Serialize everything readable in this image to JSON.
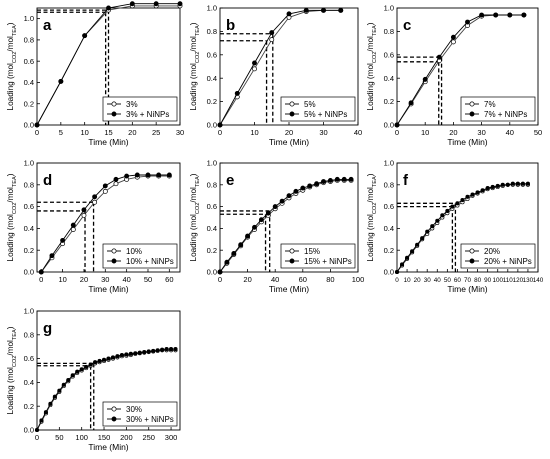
{
  "chart_data": [
    {
      "id": "a",
      "type": "line",
      "panel_label": "a",
      "xlabel": "Time (Min)",
      "ylabel_parts": [
        "Loading (mol",
        "CO2",
        "/mol",
        "TEA",
        ")"
      ],
      "xlim": [
        0,
        30
      ],
      "ylim": [
        0,
        1.1
      ],
      "xticks": [
        0,
        5,
        10,
        15,
        20,
        25,
        30
      ],
      "yticks": [
        0.0,
        0.2,
        0.4,
        0.6,
        0.8,
        1.0
      ],
      "ytick_labels": [
        "0.0",
        "0.2",
        "0.4",
        "0.6",
        "0.8",
        "1.0"
      ],
      "legend_position": "bottom-right",
      "series": [
        {
          "name": "3%",
          "marker": "open-circle",
          "x": [
            0,
            5,
            10,
            15,
            20,
            25,
            30
          ],
          "y": [
            0,
            0.41,
            0.84,
            1.08,
            1.12,
            1.12,
            1.12
          ]
        },
        {
          "name": "3% + NiNPs",
          "marker": "filled-circle",
          "x": [
            0,
            5,
            10,
            15,
            20,
            25,
            30
          ],
          "y": [
            0,
            0.41,
            0.84,
            1.1,
            1.14,
            1.14,
            1.14
          ]
        }
      ],
      "guides": [
        {
          "x": 14.4,
          "y": 1.06
        },
        {
          "x": 15.0,
          "y": 1.08
        }
      ]
    },
    {
      "id": "b",
      "type": "line",
      "panel_label": "b",
      "xlabel": "Time (Min)",
      "ylabel_parts": [
        "Loading (mol",
        "CO2",
        "/mol",
        "TEA",
        ")"
      ],
      "xlim": [
        0,
        40
      ],
      "ylim": [
        0,
        1.0
      ],
      "xticks": [
        0,
        10,
        20,
        30,
        40
      ],
      "yticks": [
        0.0,
        0.2,
        0.4,
        0.6,
        0.8,
        1.0
      ],
      "ytick_labels": [
        "0.0",
        "0.2",
        "0.4",
        "0.6",
        "0.8",
        "1.0"
      ],
      "legend_position": "bottom-right",
      "series": [
        {
          "name": "5%",
          "marker": "open-circle",
          "x": [
            0,
            5,
            10,
            15,
            20,
            25,
            30,
            35
          ],
          "y": [
            0,
            0.24,
            0.48,
            0.73,
            0.92,
            0.97,
            0.98,
            0.98
          ]
        },
        {
          "name": "5% + NiNPs",
          "marker": "filled-circle",
          "x": [
            0,
            5,
            10,
            15,
            20,
            25,
            30,
            35
          ],
          "y": [
            0,
            0.27,
            0.53,
            0.79,
            0.95,
            0.98,
            0.98,
            0.98
          ]
        }
      ],
      "guides": [
        {
          "x": 13.5,
          "y": 0.72
        },
        {
          "x": 15.3,
          "y": 0.78
        }
      ]
    },
    {
      "id": "c",
      "type": "line",
      "panel_label": "c",
      "xlabel": "Time (Min)",
      "ylabel_parts": [
        "Loading (mol",
        "CO2",
        "/mol",
        "TEA",
        ")"
      ],
      "xlim": [
        0,
        50
      ],
      "ylim": [
        0,
        1.0
      ],
      "xticks": [
        0,
        10,
        20,
        30,
        40,
        50
      ],
      "yticks": [
        0.0,
        0.2,
        0.4,
        0.6,
        0.8,
        1.0
      ],
      "ytick_labels": [
        "0.0",
        "0.2",
        "0.4",
        "0.6",
        "0.8",
        "1.0"
      ],
      "legend_position": "bottom-right",
      "series": [
        {
          "name": "7%",
          "marker": "open-circle",
          "x": [
            0,
            5,
            10,
            15,
            20,
            25,
            30,
            35,
            40,
            45
          ],
          "y": [
            0,
            0.18,
            0.37,
            0.55,
            0.71,
            0.85,
            0.93,
            0.94,
            0.94,
            0.94
          ]
        },
        {
          "name": "7% + NiNPs",
          "marker": "filled-circle",
          "x": [
            0,
            5,
            10,
            15,
            20,
            25,
            30,
            35,
            40,
            45
          ],
          "y": [
            0,
            0.19,
            0.39,
            0.58,
            0.75,
            0.88,
            0.94,
            0.94,
            0.94,
            0.94
          ]
        }
      ],
      "guides": [
        {
          "x": 14.8,
          "y": 0.54
        },
        {
          "x": 15.8,
          "y": 0.58
        }
      ]
    },
    {
      "id": "d",
      "type": "line",
      "panel_label": "d",
      "xlabel": "Time (Min)",
      "ylabel_parts": [
        "Loading (mol",
        "CO2",
        "/mol",
        "TEA",
        ")"
      ],
      "xlim": [
        -2,
        65
      ],
      "ylim": [
        0,
        1.0
      ],
      "xticks": [
        0,
        10,
        20,
        30,
        40,
        50,
        60
      ],
      "yticks": [
        0.0,
        0.2,
        0.4,
        0.6,
        0.8,
        1.0
      ],
      "ytick_labels": [
        "0.0",
        "0.2",
        "0.4",
        "0.6",
        "0.8",
        "1.0"
      ],
      "legend_position": "bottom-right",
      "series": [
        {
          "name": "10%",
          "marker": "open-circle",
          "x": [
            0,
            5,
            10,
            15,
            20,
            25,
            30,
            35,
            40,
            45,
            50,
            55,
            60
          ],
          "y": [
            0,
            0.13,
            0.26,
            0.39,
            0.52,
            0.64,
            0.74,
            0.81,
            0.85,
            0.87,
            0.88,
            0.88,
            0.88
          ]
        },
        {
          "name": "10% + NiNPs",
          "marker": "filled-circle",
          "x": [
            0,
            5,
            10,
            15,
            20,
            25,
            30,
            35,
            40,
            45,
            50,
            55,
            60
          ],
          "y": [
            0,
            0.15,
            0.29,
            0.43,
            0.57,
            0.69,
            0.79,
            0.85,
            0.88,
            0.89,
            0.89,
            0.89,
            0.89
          ]
        }
      ],
      "guides": [
        {
          "x": 20.5,
          "y": 0.56
        },
        {
          "x": 24.5,
          "y": 0.64
        }
      ]
    },
    {
      "id": "e",
      "type": "line",
      "panel_label": "e",
      "xlabel": "Time (Min)",
      "ylabel_parts": [
        "Loading (mol",
        "CO2",
        "/mol",
        "TEA",
        ")"
      ],
      "xlim": [
        0,
        100
      ],
      "ylim": [
        0,
        1.0
      ],
      "xticks": [
        0,
        20,
        40,
        60,
        80,
        100
      ],
      "yticks": [
        0.0,
        0.2,
        0.4,
        0.6,
        0.8,
        1.0
      ],
      "ytick_labels": [
        "0.0",
        "0.2",
        "0.4",
        "0.6",
        "0.8",
        "1.0"
      ],
      "legend_position": "bottom-right",
      "series": [
        {
          "name": "15%",
          "marker": "open-circle",
          "x": [
            0,
            5,
            10,
            15,
            20,
            25,
            30,
            35,
            40,
            45,
            50,
            55,
            60,
            65,
            70,
            75,
            80,
            85,
            90,
            95
          ],
          "y": [
            0,
            0.08,
            0.16,
            0.24,
            0.32,
            0.39,
            0.46,
            0.52,
            0.58,
            0.63,
            0.68,
            0.72,
            0.75,
            0.78,
            0.8,
            0.82,
            0.83,
            0.84,
            0.84,
            0.84
          ]
        },
        {
          "name": "15% + NiNPs",
          "marker": "filled-circle",
          "x": [
            0,
            5,
            10,
            15,
            20,
            25,
            30,
            35,
            40,
            45,
            50,
            55,
            60,
            65,
            70,
            75,
            80,
            85,
            90,
            95
          ],
          "y": [
            0,
            0.09,
            0.17,
            0.25,
            0.33,
            0.41,
            0.48,
            0.54,
            0.6,
            0.65,
            0.7,
            0.74,
            0.77,
            0.79,
            0.81,
            0.83,
            0.84,
            0.85,
            0.85,
            0.85
          ]
        }
      ],
      "guides": [
        {
          "x": 33,
          "y": 0.53
        },
        {
          "x": 36,
          "y": 0.56
        }
      ]
    },
    {
      "id": "f",
      "type": "line",
      "panel_label": "f",
      "xlabel": "Time (Min)",
      "ylabel_parts": [
        "Loading (mol",
        "CO2",
        "/mol",
        "TEA",
        ")"
      ],
      "xlim": [
        0,
        140
      ],
      "ylim": [
        0,
        1.0
      ],
      "xticks": [
        0,
        10,
        20,
        30,
        40,
        50,
        60,
        70,
        80,
        90,
        100,
        110,
        120,
        130,
        140
      ],
      "yticks": [
        0.0,
        0.2,
        0.4,
        0.6,
        0.8,
        1.0
      ],
      "ytick_labels": [
        "0.0",
        "0.2",
        "0.4",
        "0.6",
        "0.8",
        "1.0"
      ],
      "legend_position": "bottom-right",
      "series": [
        {
          "name": "20%",
          "marker": "open-circle",
          "x": [
            0,
            5,
            10,
            15,
            20,
            25,
            30,
            35,
            40,
            45,
            50,
            55,
            60,
            65,
            70,
            75,
            80,
            85,
            90,
            95,
            100,
            105,
            110,
            115,
            120,
            125,
            130
          ],
          "y": [
            0,
            0.06,
            0.12,
            0.18,
            0.24,
            0.3,
            0.35,
            0.4,
            0.45,
            0.5,
            0.54,
            0.58,
            0.61,
            0.64,
            0.67,
            0.7,
            0.72,
            0.74,
            0.76,
            0.77,
            0.78,
            0.79,
            0.8,
            0.8,
            0.8,
            0.8,
            0.8
          ]
        },
        {
          "name": "20% + NiNPs",
          "marker": "filled-circle",
          "x": [
            0,
            5,
            10,
            15,
            20,
            25,
            30,
            35,
            40,
            45,
            50,
            55,
            60,
            65,
            70,
            75,
            80,
            85,
            90,
            95,
            100,
            105,
            110,
            115,
            120,
            125,
            130
          ],
          "y": [
            0,
            0.07,
            0.13,
            0.19,
            0.25,
            0.31,
            0.37,
            0.42,
            0.47,
            0.52,
            0.56,
            0.6,
            0.63,
            0.66,
            0.69,
            0.71,
            0.73,
            0.75,
            0.77,
            0.78,
            0.79,
            0.8,
            0.8,
            0.81,
            0.81,
            0.81,
            0.81
          ]
        }
      ],
      "guides": [
        {
          "x": 55,
          "y": 0.6
        },
        {
          "x": 58,
          "y": 0.63
        }
      ]
    },
    {
      "id": "g",
      "type": "line",
      "panel_label": "g",
      "xlabel": "Time (Min)",
      "ylabel_parts": [
        "Loading (mol",
        "CO2",
        "/mol",
        "TEA",
        ")"
      ],
      "xlim": [
        0,
        320
      ],
      "ylim": [
        0,
        1.0
      ],
      "xticks": [
        0,
        50,
        100,
        150,
        200,
        250,
        300
      ],
      "yticks": [
        0.0,
        0.2,
        0.4,
        0.6,
        0.8,
        1.0
      ],
      "ytick_labels": [
        "0.0",
        "0.2",
        "0.4",
        "0.6",
        "0.8",
        "1.0"
      ],
      "legend_position": "bottom-right",
      "series": [
        {
          "name": "30%",
          "marker": "open-circle",
          "x": [
            0,
            10,
            20,
            30,
            40,
            50,
            60,
            70,
            80,
            90,
            100,
            110,
            120,
            130,
            140,
            150,
            160,
            170,
            180,
            190,
            200,
            210,
            220,
            230,
            240,
            250,
            260,
            270,
            280,
            290,
            300,
            310
          ],
          "y": [
            0,
            0.07,
            0.14,
            0.21,
            0.27,
            0.32,
            0.37,
            0.41,
            0.45,
            0.48,
            0.5,
            0.52,
            0.54,
            0.56,
            0.57,
            0.58,
            0.59,
            0.6,
            0.61,
            0.62,
            0.625,
            0.63,
            0.64,
            0.645,
            0.65,
            0.655,
            0.66,
            0.665,
            0.67,
            0.67,
            0.67,
            0.67
          ]
        },
        {
          "name": "30% + NiNPs",
          "marker": "filled-circle",
          "x": [
            0,
            10,
            20,
            30,
            40,
            50,
            60,
            70,
            80,
            90,
            100,
            110,
            120,
            130,
            140,
            150,
            160,
            170,
            180,
            190,
            200,
            210,
            220,
            230,
            240,
            250,
            260,
            270,
            280,
            290,
            300,
            310
          ],
          "y": [
            0,
            0.08,
            0.15,
            0.22,
            0.28,
            0.33,
            0.38,
            0.42,
            0.46,
            0.49,
            0.51,
            0.53,
            0.55,
            0.57,
            0.58,
            0.59,
            0.6,
            0.61,
            0.62,
            0.63,
            0.635,
            0.64,
            0.645,
            0.65,
            0.655,
            0.66,
            0.665,
            0.67,
            0.675,
            0.68,
            0.68,
            0.68
          ]
        }
      ],
      "guides": [
        {
          "x": 120,
          "y": 0.54
        },
        {
          "x": 127,
          "y": 0.56
        }
      ]
    }
  ]
}
